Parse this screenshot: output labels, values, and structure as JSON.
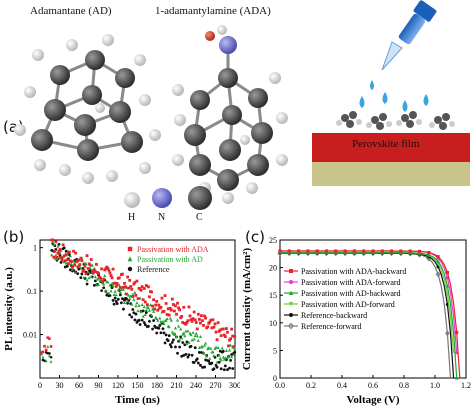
{
  "panel_a": {
    "label": "(a)",
    "molecule_1_title": "Adamantane (AD)",
    "molecule_2_title": "1-adamantylamine (ADA)",
    "film_label": "Perovskite film",
    "atom_legend": [
      {
        "symbol": "H",
        "color": "#e6e6e6"
      },
      {
        "symbol": "N",
        "color": "#7d7fd6"
      },
      {
        "symbol": "C",
        "color": "#3d3d3d"
      }
    ],
    "colors": {
      "film_top": "#c81e1e",
      "film_bottom": "#c8c48a",
      "droplet": "#3aa3e0",
      "carbon": "#4a4a4a",
      "hydrogen": "#e9e9e9",
      "nitrogen": "#7477d0",
      "oxygen_red": "#d94a3a"
    }
  },
  "panel_b": {
    "label": "(b)",
    "chart_data": {
      "type": "scatter",
      "xlabel": "Time (ns)",
      "ylabel": "PL intensity (a.u.)",
      "xlim": [
        0,
        300
      ],
      "ylim_log": [
        0.001,
        1.5
      ],
      "y_scale": "log",
      "x_ticks": [
        "0",
        "30",
        "60",
        "90",
        "120",
        "150",
        "180",
        "210",
        "240",
        "270",
        "300"
      ],
      "y_ticks": [
        "1",
        "0.1",
        "0.01"
      ],
      "legend_position": "top-right",
      "series": [
        {
          "name": "Passivation with ADA",
          "color": "#e8232a",
          "marker": "square",
          "decay_tau": 58
        },
        {
          "name": "Passivation with AD",
          "color": "#23a631",
          "marker": "triangle",
          "decay_tau": 45
        },
        {
          "name": "Reference",
          "color": "#111111",
          "marker": "circle",
          "decay_tau": 38
        }
      ],
      "peak_x": 18,
      "peak_y": 1.0,
      "noise_floor": [
        0.0055,
        0.0035,
        0.0025
      ]
    }
  },
  "panel_c": {
    "label": "(c)",
    "chart_data": {
      "type": "line",
      "xlabel": "Voltage (V)",
      "ylabel": "Current density (mA/cm²)",
      "xlim": [
        0.0,
        1.2
      ],
      "ylim": [
        0,
        25
      ],
      "x_ticks": [
        "0.0",
        "0.2",
        "0.4",
        "0.6",
        "0.8",
        "1.0",
        "1.2"
      ],
      "y_ticks": [
        "0",
        "5",
        "10",
        "15",
        "20",
        "25"
      ],
      "legend_position": "center-left",
      "series": [
        {
          "name": "Passivation with ADA-backward",
          "color": "#e8232a",
          "marker": "square",
          "jsc": 23.0,
          "voc": 1.16
        },
        {
          "name": "Passivation with ADA-forward",
          "color": "#e23cd8",
          "marker": "circle",
          "jsc": 23.0,
          "voc": 1.15
        },
        {
          "name": "Passivation with AD-backward",
          "color": "#23a631",
          "marker": "triangle",
          "jsc": 22.7,
          "voc": 1.14
        },
        {
          "name": "Passivation with AD-forward",
          "color": "#6ecf3a",
          "marker": "triangle-down",
          "jsc": 22.7,
          "voc": 1.13
        },
        {
          "name": "Reference-backward",
          "color": "#111111",
          "marker": "circle",
          "jsc": 22.6,
          "voc": 1.12
        },
        {
          "name": "Reference-forward",
          "color": "#777777",
          "marker": "diamond",
          "jsc": 22.6,
          "voc": 1.1
        }
      ]
    }
  }
}
